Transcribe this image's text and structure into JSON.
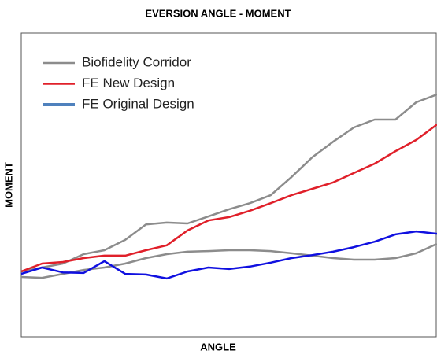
{
  "chart_data": {
    "type": "line",
    "title": "EVERSION ANGLE - MOMENT",
    "xlabel": "ANGLE",
    "ylabel": "MOMENT",
    "x": [
      0,
      5,
      10,
      15,
      20,
      25,
      30,
      35,
      40,
      45,
      50,
      55,
      60,
      65,
      70,
      75,
      80,
      85,
      90,
      95,
      100
    ],
    "xlim": [
      0,
      100
    ],
    "ylim": [
      0,
      100
    ],
    "legend": "upper left",
    "series": [
      {
        "name": "Biofidelity Corridor",
        "color": "#8c8c8c",
        "values": [
          21.5,
          22.8,
          24.1,
          27.2,
          28.5,
          31.9,
          37.0,
          37.6,
          37.3,
          39.6,
          42.0,
          44.0,
          46.6,
          52.6,
          59.1,
          64.2,
          68.9,
          71.5,
          71.5,
          77.2,
          79.8
        ],
        "lower": [
          19.7,
          19.4,
          20.7,
          22.0,
          22.8,
          24.1,
          25.9,
          27.2,
          28.0,
          28.2,
          28.5,
          28.5,
          28.2,
          27.5,
          26.7,
          25.9,
          25.4,
          25.4,
          25.9,
          27.5,
          30.6
        ]
      },
      {
        "name": "FE New Design",
        "color": "#e0202a",
        "values": [
          21.5,
          24.1,
          24.6,
          25.9,
          26.7,
          26.7,
          28.5,
          30.1,
          35.0,
          38.3,
          39.4,
          41.5,
          44.0,
          46.6,
          48.7,
          50.8,
          53.9,
          57.0,
          61.1,
          64.8,
          69.9
        ]
      },
      {
        "name": "FE Original Design",
        "color": "#1010e0",
        "legend_color": "#4f81bd",
        "values": [
          20.7,
          22.8,
          21.2,
          21.0,
          24.9,
          20.7,
          20.5,
          19.2,
          21.5,
          22.8,
          22.3,
          23.1,
          24.4,
          25.9,
          26.9,
          28.0,
          29.5,
          31.3,
          33.7,
          34.7,
          33.9
        ]
      }
    ]
  }
}
